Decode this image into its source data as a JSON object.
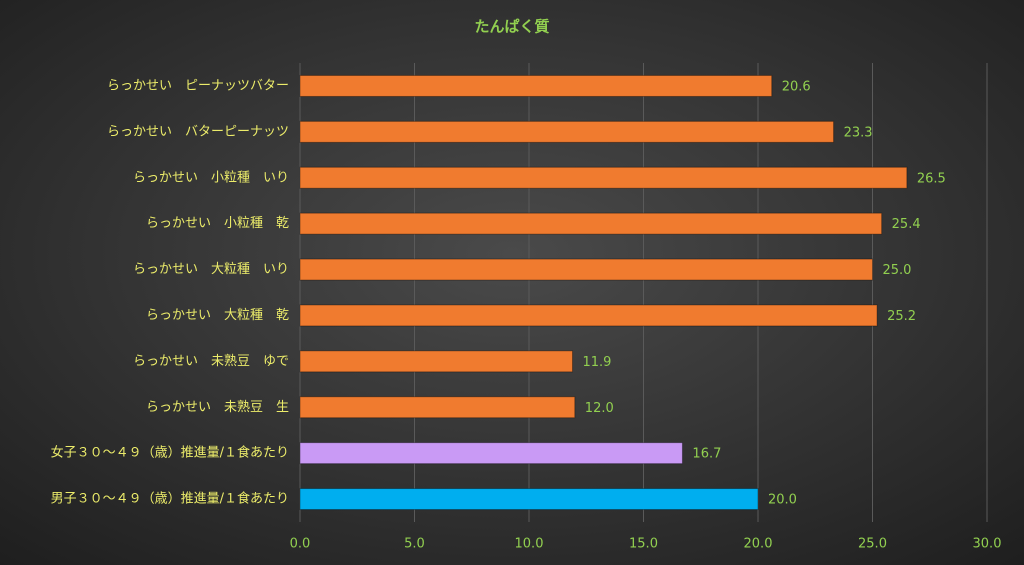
{
  "chart_data": {
    "type": "barh",
    "title": "たんぱく質",
    "categories": [
      "らっかせい　ピーナッツバター",
      "らっかせい　バターピーナッツ",
      "らっかせい　小粒種　いり",
      "らっかせい　小粒種　乾",
      "らっかせい　大粒種　いり",
      "らっかせい　大粒種　乾",
      "らっかせい　未熟豆　ゆで",
      "らっかせい　未熟豆　生",
      "女子３０～４９（歳）推進量/１食あたり",
      "男子３０～４９（歳）推進量/１食あたり"
    ],
    "values": [
      20.6,
      23.3,
      26.5,
      25.4,
      25.0,
      25.2,
      11.9,
      12.0,
      16.7,
      20.0
    ],
    "value_labels": [
      "20.6",
      "23.3",
      "26.5",
      "25.4",
      "25.0",
      "25.2",
      "11.9",
      "12.0",
      "16.7",
      "20.0"
    ],
    "colors": [
      "#f07b2f",
      "#f07b2f",
      "#f07b2f",
      "#f07b2f",
      "#f07b2f",
      "#f07b2f",
      "#f07b2f",
      "#f07b2f",
      "#c99af5",
      "#00aeef"
    ],
    "xlim": [
      0,
      30
    ],
    "xticks": [
      {
        "value": 0,
        "label": "0.0"
      },
      {
        "value": 5,
        "label": "5.0"
      },
      {
        "value": 10,
        "label": "10.0"
      },
      {
        "value": 15,
        "label": "15.0"
      },
      {
        "value": 20,
        "label": "20.0"
      },
      {
        "value": 25,
        "label": "25.0"
      },
      {
        "value": 30,
        "label": "30.0"
      }
    ],
    "grid": true
  }
}
